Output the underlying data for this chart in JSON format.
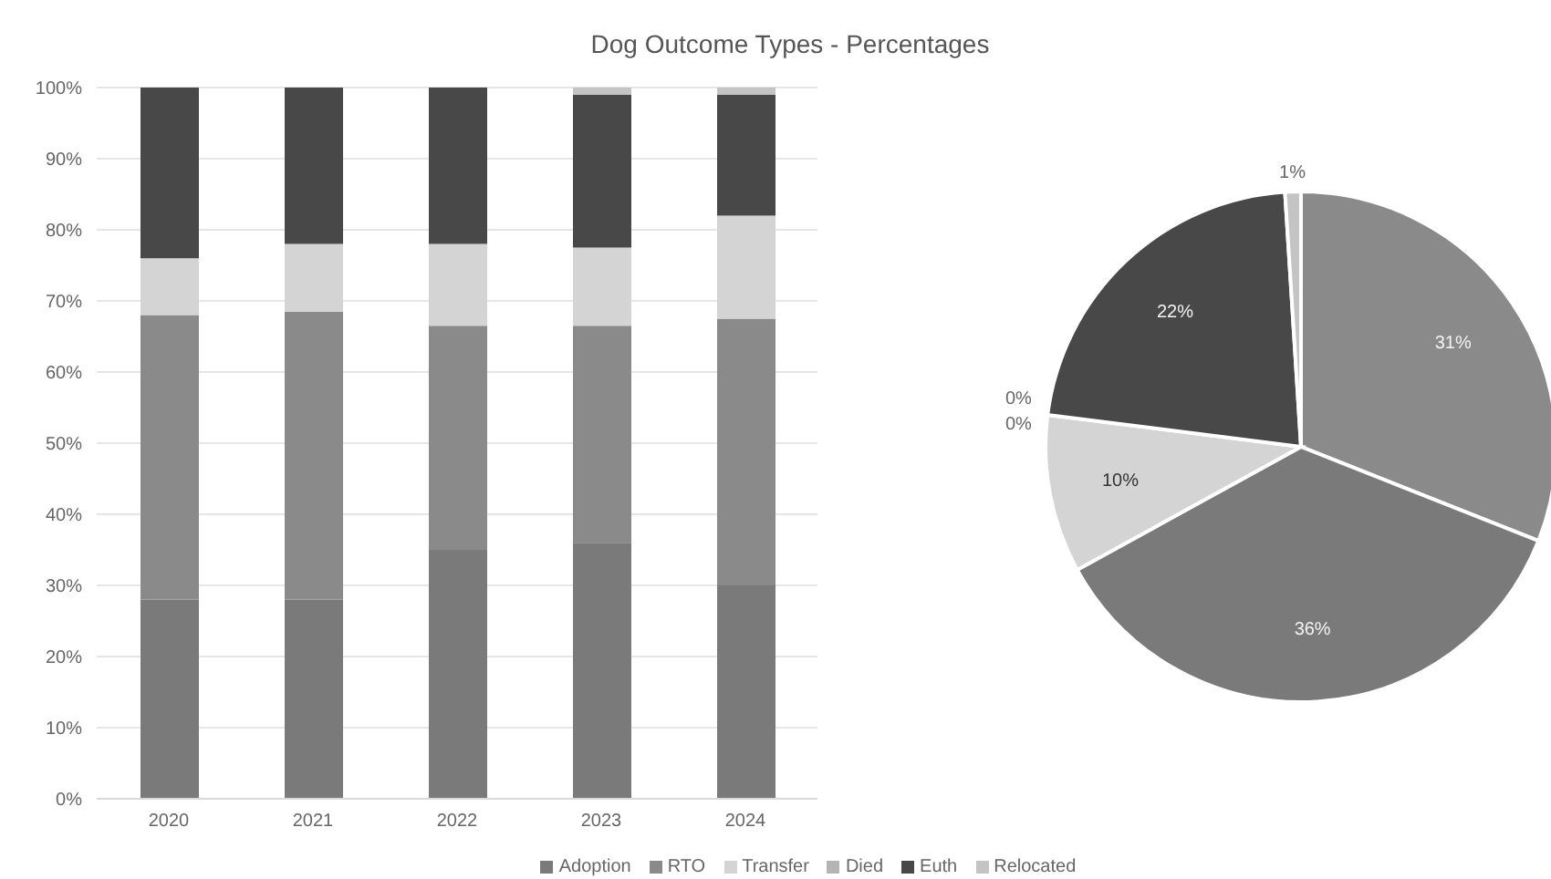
{
  "chart_data": [
    {
      "type": "bar",
      "title": "Dog Outcome Types - Percentages",
      "stacked": true,
      "categories": [
        "2020",
        "2021",
        "2022",
        "2023",
        "2024"
      ],
      "series": [
        {
          "name": "Adoption",
          "color": "#7a7a7a",
          "values": [
            28,
            28,
            35,
            36,
            30
          ]
        },
        {
          "name": "RTO",
          "color": "#8a8a8a",
          "values": [
            40,
            40.5,
            31.5,
            30.5,
            37.5
          ]
        },
        {
          "name": "Transfer",
          "color": "#d4d4d4",
          "values": [
            8,
            9.5,
            11.5,
            11,
            14.5
          ]
        },
        {
          "name": "Died",
          "color": "#b4b4b4",
          "values": [
            0,
            0,
            0,
            0,
            0
          ]
        },
        {
          "name": "Euth",
          "color": "#484848",
          "values": [
            24,
            22,
            22,
            21.5,
            17
          ]
        },
        {
          "name": "Relocated",
          "color": "#c4c4c4",
          "values": [
            0,
            0,
            0,
            1,
            1
          ]
        }
      ],
      "ylim": [
        0,
        100
      ],
      "yticks": [
        {
          "value": 0,
          "label": "0%"
        },
        {
          "value": 10,
          "label": "10%"
        },
        {
          "value": 20,
          "label": "20%"
        },
        {
          "value": 30,
          "label": "30%"
        },
        {
          "value": 40,
          "label": "40%"
        },
        {
          "value": 50,
          "label": "50%"
        },
        {
          "value": 60,
          "label": "60%"
        },
        {
          "value": 70,
          "label": "70%"
        },
        {
          "value": 80,
          "label": "80%"
        },
        {
          "value": 90,
          "label": "90%"
        },
        {
          "value": 100,
          "label": "100%"
        }
      ],
      "grid": "y",
      "legend": "bottom"
    },
    {
      "type": "pie",
      "categories": [
        null,
        null,
        null,
        null,
        null,
        null,
        null
      ],
      "values": [
        31,
        36,
        10,
        0,
        0,
        22,
        1
      ],
      "colors": [
        "#8a8a8a",
        "#7a7a7a",
        "#d4d4d4",
        "#b4b4b4",
        "#c4c4c4",
        "#484848",
        "#c4c4c4"
      ],
      "value_labels": [
        "31%",
        "36%",
        "10%",
        "0%",
        "0%",
        "22%",
        "1%"
      ]
    }
  ]
}
